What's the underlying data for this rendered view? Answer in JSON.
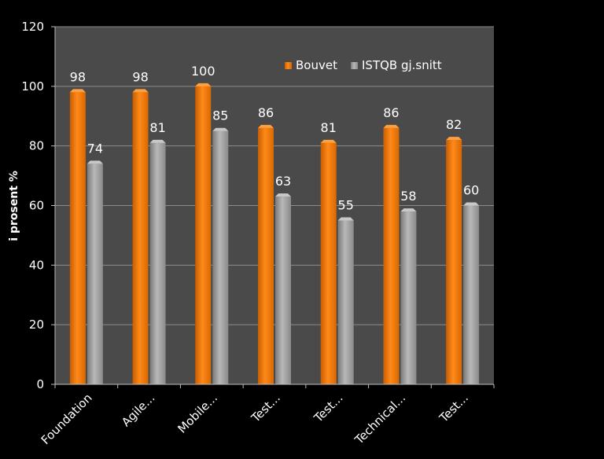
{
  "chart_data": {
    "type": "bar",
    "categories": [
      "Foundation",
      "Agile...",
      "Mobile...",
      "Test...",
      "Test...",
      "Technical...",
      "Test..."
    ],
    "series": [
      {
        "name": "Bouvet",
        "values": [
          98,
          98,
          100,
          86,
          81,
          86,
          82
        ],
        "color": "#f07c0a"
      },
      {
        "name": "ISTQB gj.snitt",
        "values": [
          74,
          81,
          85,
          63,
          55,
          58,
          60
        ],
        "color": "#9a9a9a"
      }
    ],
    "ylabel": "i prosent %",
    "ylim": [
      0,
      120
    ],
    "yticks": [
      0,
      20,
      40,
      60,
      80,
      100,
      120
    ],
    "grid": true,
    "legend": "top-right",
    "plot_background": "#4a4a4a",
    "page_background": "#000000"
  }
}
